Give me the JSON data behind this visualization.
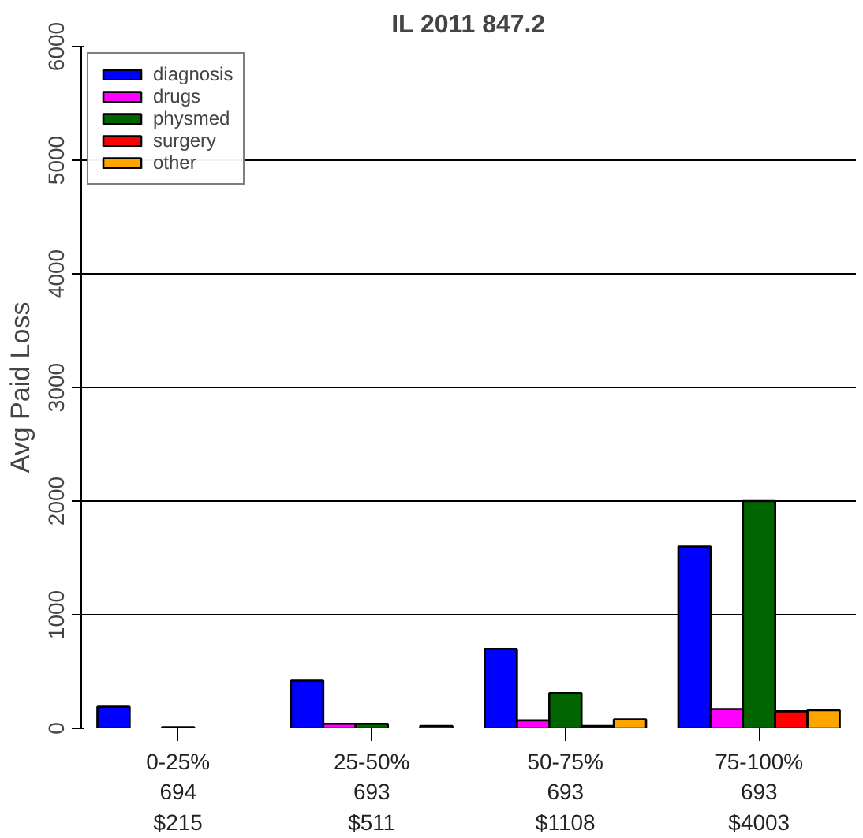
{
  "chart_data": {
    "type": "bar",
    "title": "IL 2011 847.2",
    "ylabel": "Avg Paid Loss",
    "categories": [
      "0-25%\n694\n$215",
      "25-50%\n693\n$511",
      "50-75%\n693\n$1108",
      "75-100%\n693\n$4003"
    ],
    "series": [
      {
        "name": "diagnosis",
        "color": "#0000ff",
        "values": [
          190,
          420,
          700,
          1600
        ]
      },
      {
        "name": "drugs",
        "color": "#ff00ff",
        "values": [
          null,
          40,
          70,
          170
        ]
      },
      {
        "name": "physmed",
        "color": "#006400",
        "values": [
          10,
          40,
          310,
          2000
        ]
      },
      {
        "name": "surgery",
        "color": "#ff0000",
        "values": [
          null,
          null,
          20,
          150
        ]
      },
      {
        "name": "other",
        "color": "#ffa500",
        "values": [
          null,
          20,
          80,
          160
        ]
      }
    ],
    "ylim": [
      0,
      6000
    ],
    "yticks": [
      0,
      1000,
      2000,
      3000,
      4000,
      5000,
      6000
    ],
    "grid": "y",
    "legend": "top left"
  }
}
